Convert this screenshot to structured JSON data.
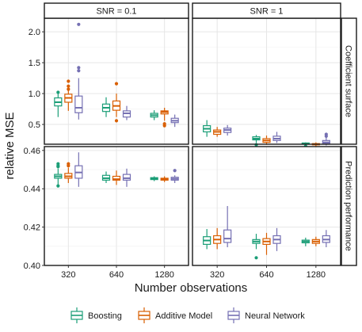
{
  "chart_data": {
    "type": "boxplot",
    "ylabel": "relative MSE",
    "xlabel": "Number observations",
    "categories": [
      "320",
      "640",
      "1280"
    ],
    "columns": [
      "SNR = 0.1",
      "SNR = 1"
    ],
    "rows": [
      "Coefficient surface",
      "Prediction performance"
    ],
    "legend": {
      "position": "bottom",
      "items": [
        {
          "name": "Boosting",
          "color": "#1b9e77"
        },
        {
          "name": "Additive Model",
          "color": "#d95f02"
        },
        {
          "name": "Neural Network",
          "color": "#7570b3"
        }
      ]
    },
    "grid": true,
    "panel_rows": [
      {
        "label": "Coefficient surface",
        "ylim": [
          0.18,
          2.22
        ],
        "yticks": [
          0.5,
          1.0,
          1.5,
          2.0
        ],
        "ytick_labels": [
          "0.5",
          "1.0",
          "1.5",
          "2.0"
        ]
      },
      {
        "label": "Prediction performance",
        "ylim": [
          0.4,
          0.462
        ],
        "yticks": [
          0.4,
          0.42,
          0.44,
          0.46
        ],
        "ytick_labels": [
          "0.40",
          "0.42",
          "0.44",
          "0.46"
        ]
      }
    ],
    "panels": [
      {
        "row": 0,
        "col": 0,
        "boxes": [
          {
            "category": "320",
            "series": "Boosting",
            "stats": [
              0.62,
              0.8,
              0.86,
              0.93,
              1.04
            ],
            "outliers": [
              1.02
            ]
          },
          {
            "category": "320",
            "series": "Additive Model",
            "stats": [
              0.72,
              0.86,
              0.93,
              0.99,
              1.1
            ],
            "outliers": [
              1.07,
              1.12,
              1.2
            ]
          },
          {
            "category": "320",
            "series": "Neural Network",
            "stats": [
              0.58,
              0.69,
              0.77,
              0.96,
              1.25
            ],
            "outliers": [
              1.37,
              1.42,
              2.12
            ]
          },
          {
            "category": "640",
            "series": "Boosting",
            "stats": [
              0.62,
              0.71,
              0.77,
              0.83,
              0.94
            ],
            "outliers": []
          },
          {
            "category": "640",
            "series": "Additive Model",
            "stats": [
              0.62,
              0.73,
              0.8,
              0.88,
              1.0
            ],
            "outliers": [
              0.56,
              1.16
            ]
          },
          {
            "category": "640",
            "series": "Neural Network",
            "stats": [
              0.57,
              0.62,
              0.68,
              0.72,
              0.8
            ],
            "outliers": []
          },
          {
            "category": "1280",
            "series": "Boosting",
            "stats": [
              0.57,
              0.62,
              0.65,
              0.68,
              0.73
            ],
            "outliers": []
          },
          {
            "category": "1280",
            "series": "Additive Model",
            "stats": [
              0.56,
              0.67,
              0.7,
              0.72,
              0.77
            ],
            "outliers": [
              0.48,
              0.51
            ]
          },
          {
            "category": "1280",
            "series": "Neural Network",
            "stats": [
              0.46,
              0.53,
              0.56,
              0.6,
              0.66
            ],
            "outliers": []
          }
        ]
      },
      {
        "row": 0,
        "col": 1,
        "boxes": [
          {
            "category": "320",
            "series": "Boosting",
            "stats": [
              0.3,
              0.38,
              0.43,
              0.48,
              0.57
            ],
            "outliers": []
          },
          {
            "category": "320",
            "series": "Additive Model",
            "stats": [
              0.3,
              0.34,
              0.38,
              0.41,
              0.46
            ],
            "outliers": []
          },
          {
            "category": "320",
            "series": "Neural Network",
            "stats": [
              0.32,
              0.37,
              0.41,
              0.44,
              0.49
            ],
            "outliers": []
          },
          {
            "category": "640",
            "series": "Boosting",
            "stats": [
              0.2,
              0.25,
              0.27,
              0.3,
              0.33
            ],
            "outliers": [
              0.17
            ]
          },
          {
            "category": "640",
            "series": "Additive Model",
            "stats": [
              0.17,
              0.21,
              0.24,
              0.27,
              0.32
            ],
            "outliers": []
          },
          {
            "category": "640",
            "series": "Neural Network",
            "stats": [
              0.2,
              0.24,
              0.27,
              0.31,
              0.38
            ],
            "outliers": []
          },
          {
            "category": "1280",
            "series": "Boosting",
            "stats": [
              0.16,
              0.18,
              0.19,
              0.2,
              0.21
            ],
            "outliers": [
              0.15
            ]
          },
          {
            "category": "1280",
            "series": "Additive Model",
            "stats": [
              0.14,
              0.17,
              0.18,
              0.19,
              0.21
            ],
            "outliers": []
          },
          {
            "category": "1280",
            "series": "Neural Network",
            "stats": [
              0.16,
              0.19,
              0.21,
              0.24,
              0.29
            ],
            "outliers": [
              0.31,
              0.34
            ]
          }
        ]
      },
      {
        "row": 1,
        "col": 0,
        "boxes": [
          {
            "category": "320",
            "series": "Boosting",
            "stats": [
              0.442,
              0.4455,
              0.4465,
              0.4475,
              0.4505
            ],
            "outliers": [
              0.4415,
              0.4515,
              0.452,
              0.453
            ]
          },
          {
            "category": "320",
            "series": "Additive Model",
            "stats": [
              0.443,
              0.4455,
              0.4465,
              0.448,
              0.451
            ],
            "outliers": [
              0.452,
              0.453
            ]
          },
          {
            "category": "320",
            "series": "Neural Network",
            "stats": [
              0.441,
              0.4455,
              0.4485,
              0.452,
              0.459
            ],
            "outliers": []
          },
          {
            "category": "640",
            "series": "Boosting",
            "stats": [
              0.443,
              0.4445,
              0.4455,
              0.447,
              0.449
            ],
            "outliers": []
          },
          {
            "category": "640",
            "series": "Additive Model",
            "stats": [
              0.442,
              0.4445,
              0.445,
              0.4465,
              0.4495
            ],
            "outliers": []
          },
          {
            "category": "640",
            "series": "Neural Network",
            "stats": [
              0.441,
              0.4445,
              0.4455,
              0.4475,
              0.4505
            ],
            "outliers": []
          },
          {
            "category": "1280",
            "series": "Boosting",
            "stats": [
              0.444,
              0.4448,
              0.4453,
              0.4458,
              0.4465
            ],
            "outliers": []
          },
          {
            "category": "1280",
            "series": "Additive Model",
            "stats": [
              0.4435,
              0.4445,
              0.445,
              0.4455,
              0.4465
            ],
            "outliers": []
          },
          {
            "category": "1280",
            "series": "Neural Network",
            "stats": [
              0.443,
              0.4445,
              0.4452,
              0.446,
              0.447
            ],
            "outliers": [
              0.4495
            ]
          }
        ]
      },
      {
        "row": 1,
        "col": 1,
        "boxes": [
          {
            "category": "320",
            "series": "Boosting",
            "stats": [
              0.4085,
              0.411,
              0.413,
              0.415,
              0.419
            ],
            "outliers": []
          },
          {
            "category": "320",
            "series": "Additive Model",
            "stats": [
              0.4085,
              0.4115,
              0.4135,
              0.4155,
              0.4195
            ],
            "outliers": []
          },
          {
            "category": "320",
            "series": "Neural Network",
            "stats": [
              0.4095,
              0.412,
              0.414,
              0.4185,
              0.431
            ],
            "outliers": []
          },
          {
            "category": "640",
            "series": "Boosting",
            "stats": [
              0.4085,
              0.4115,
              0.4125,
              0.4135,
              0.4165
            ],
            "outliers": [
              0.404
            ]
          },
          {
            "category": "640",
            "series": "Additive Model",
            "stats": [
              0.4055,
              0.411,
              0.4125,
              0.414,
              0.417
            ],
            "outliers": []
          },
          {
            "category": "640",
            "series": "Neural Network",
            "stats": [
              0.4075,
              0.4115,
              0.4135,
              0.4155,
              0.4195
            ],
            "outliers": []
          },
          {
            "category": "1280",
            "series": "Boosting",
            "stats": [
              0.41,
              0.4118,
              0.4125,
              0.4132,
              0.4145
            ],
            "outliers": []
          },
          {
            "category": "1280",
            "series": "Additive Model",
            "stats": [
              0.41,
              0.4115,
              0.4125,
              0.4135,
              0.415
            ],
            "outliers": []
          },
          {
            "category": "1280",
            "series": "Neural Network",
            "stats": [
              0.4095,
              0.412,
              0.4135,
              0.4155,
              0.4185
            ],
            "outliers": []
          }
        ]
      }
    ]
  }
}
